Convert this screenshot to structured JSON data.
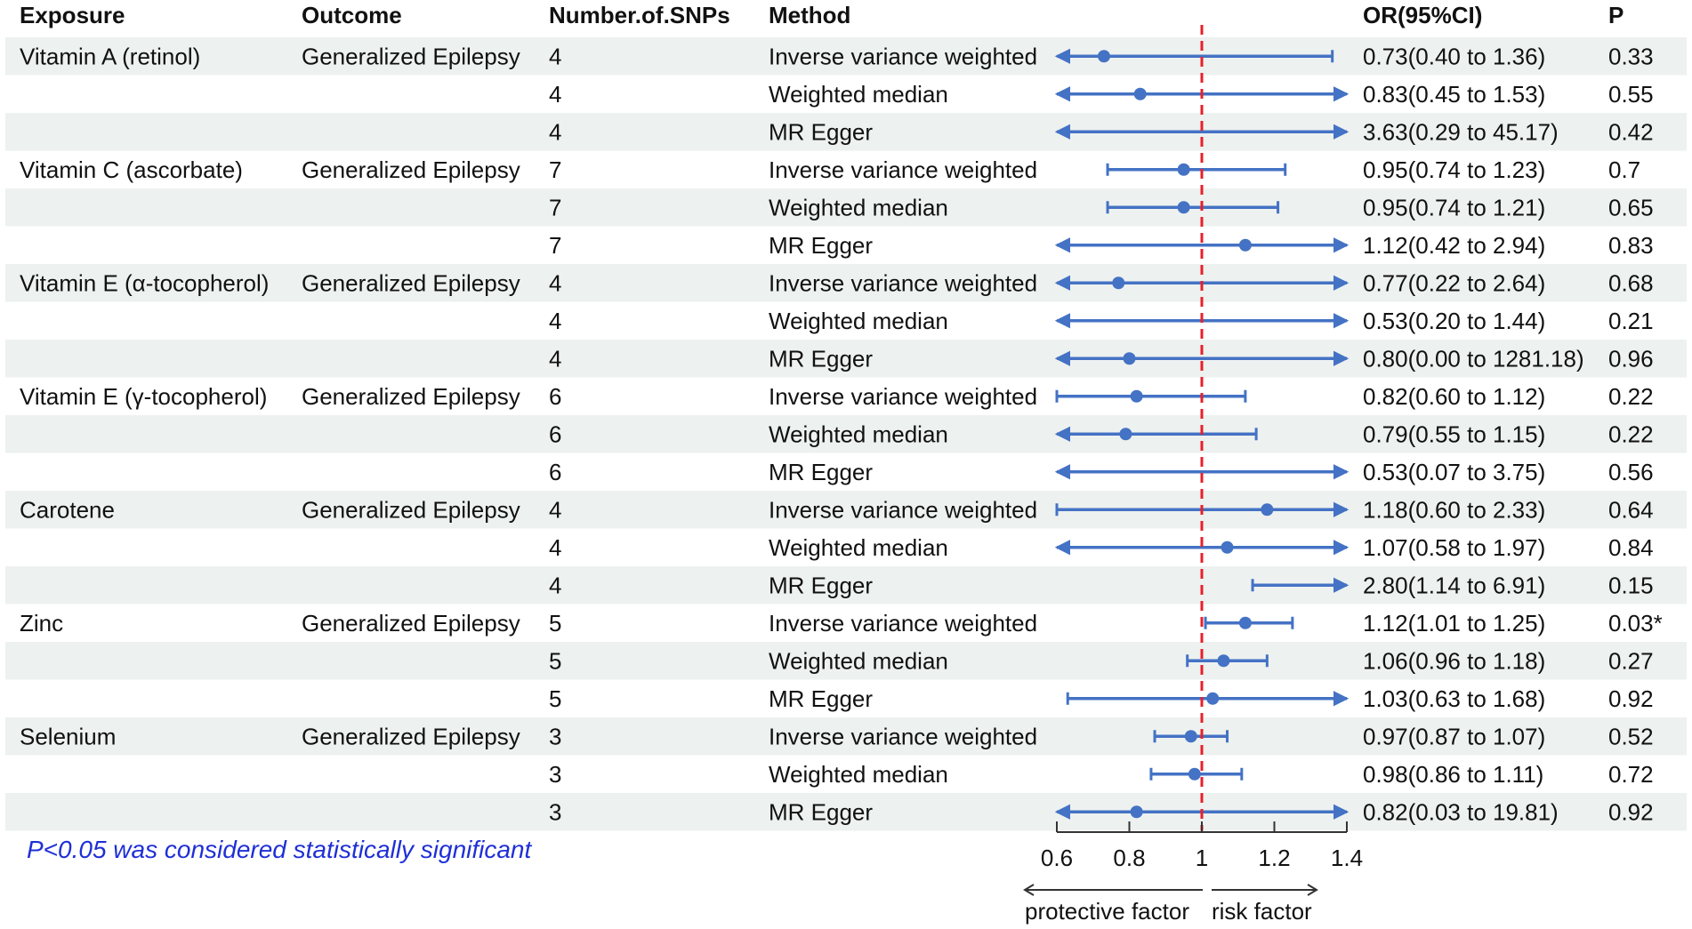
{
  "chart_data": {
    "type": "forest",
    "columns": {
      "exposure": "Exposure",
      "outcome": "Outcome",
      "snps": "Number.of.SNPs",
      "method": "Method",
      "or": "OR(95%CI)",
      "p": "P"
    },
    "rows": [
      {
        "exposure": "Vitamin A (retinol)",
        "outcome": "Generalized Epilepsy",
        "snps": "4",
        "method": "Inverse variance weighted",
        "or_text": "0.73(0.40 to 1.36)",
        "p": "0.33",
        "or": 0.73,
        "lower": 0.4,
        "upper": 1.36
      },
      {
        "exposure": "",
        "outcome": "",
        "snps": "4",
        "method": "Weighted median",
        "or_text": "0.83(0.45 to 1.53)",
        "p": "0.55",
        "or": 0.83,
        "lower": 0.45,
        "upper": 1.53
      },
      {
        "exposure": "",
        "outcome": "",
        "snps": "4",
        "method": "MR Egger",
        "or_text": "3.63(0.29 to 45.17)",
        "p": "0.42",
        "or": 3.63,
        "lower": 0.29,
        "upper": 45.17
      },
      {
        "exposure": "Vitamin C (ascorbate)",
        "outcome": "Generalized Epilepsy",
        "snps": "7",
        "method": "Inverse variance weighted",
        "or_text": "0.95(0.74 to 1.23)",
        "p": "0.7",
        "or": 0.95,
        "lower": 0.74,
        "upper": 1.23
      },
      {
        "exposure": "",
        "outcome": "",
        "snps": "7",
        "method": "Weighted median",
        "or_text": "0.95(0.74 to 1.21)",
        "p": "0.65",
        "or": 0.95,
        "lower": 0.74,
        "upper": 1.21
      },
      {
        "exposure": "",
        "outcome": "",
        "snps": "7",
        "method": "MR Egger",
        "or_text": "1.12(0.42 to 2.94)",
        "p": "0.83",
        "or": 1.12,
        "lower": 0.42,
        "upper": 2.94
      },
      {
        "exposure": "Vitamin E (α-tocopherol)",
        "outcome": "Generalized Epilepsy",
        "snps": "4",
        "method": "Inverse variance weighted",
        "or_text": "0.77(0.22 to 2.64)",
        "p": "0.68",
        "or": 0.77,
        "lower": 0.22,
        "upper": 2.64
      },
      {
        "exposure": "",
        "outcome": "",
        "snps": "4",
        "method": "Weighted median",
        "or_text": "0.53(0.20 to 1.44)",
        "p": "0.21",
        "or": 0.53,
        "lower": 0.2,
        "upper": 1.44
      },
      {
        "exposure": "",
        "outcome": "",
        "snps": "4",
        "method": "MR Egger",
        "or_text": "0.80(0.00 to 1281.18)",
        "p": "0.96",
        "or": 0.8,
        "lower": 0.0,
        "upper": 1281.18
      },
      {
        "exposure": "Vitamin E (γ-tocopherol)",
        "outcome": "Generalized Epilepsy",
        "snps": "6",
        "method": "Inverse variance weighted",
        "or_text": "0.82(0.60 to 1.12)",
        "p": "0.22",
        "or": 0.82,
        "lower": 0.6,
        "upper": 1.12
      },
      {
        "exposure": "",
        "outcome": "",
        "snps": "6",
        "method": "Weighted median",
        "or_text": "0.79(0.55 to 1.15)",
        "p": "0.22",
        "or": 0.79,
        "lower": 0.55,
        "upper": 1.15
      },
      {
        "exposure": "",
        "outcome": "",
        "snps": "6",
        "method": "MR Egger",
        "or_text": "0.53(0.07 to 3.75)",
        "p": "0.56",
        "or": 0.53,
        "lower": 0.07,
        "upper": 3.75
      },
      {
        "exposure": "Carotene",
        "outcome": "Generalized Epilepsy",
        "snps": "4",
        "method": "Inverse variance weighted",
        "or_text": "1.18(0.60 to 2.33)",
        "p": "0.64",
        "or": 1.18,
        "lower": 0.6,
        "upper": 2.33
      },
      {
        "exposure": "",
        "outcome": "",
        "snps": "4",
        "method": "Weighted median",
        "or_text": "1.07(0.58 to 1.97)",
        "p": "0.84",
        "or": 1.07,
        "lower": 0.58,
        "upper": 1.97
      },
      {
        "exposure": "",
        "outcome": "",
        "snps": "4",
        "method": "MR Egger",
        "or_text": "2.80(1.14 to 6.91)",
        "p": "0.15",
        "or": 2.8,
        "lower": 1.14,
        "upper": 6.91
      },
      {
        "exposure": "Zinc",
        "outcome": "Generalized Epilepsy",
        "snps": "5",
        "method": "Inverse variance weighted",
        "or_text": "1.12(1.01 to 1.25)",
        "p": "0.03*",
        "or": 1.12,
        "lower": 1.01,
        "upper": 1.25
      },
      {
        "exposure": "",
        "outcome": "",
        "snps": "5",
        "method": "Weighted median",
        "or_text": "1.06(0.96 to 1.18)",
        "p": "0.27",
        "or": 1.06,
        "lower": 0.96,
        "upper": 1.18
      },
      {
        "exposure": "",
        "outcome": "",
        "snps": "5",
        "method": "MR Egger",
        "or_text": "1.03(0.63 to 1.68)",
        "p": "0.92",
        "or": 1.03,
        "lower": 0.63,
        "upper": 1.68
      },
      {
        "exposure": "Selenium",
        "outcome": "Generalized Epilepsy",
        "snps": "3",
        "method": "Inverse variance weighted",
        "or_text": "0.97(0.87 to 1.07)",
        "p": "0.52",
        "or": 0.97,
        "lower": 0.87,
        "upper": 1.07
      },
      {
        "exposure": "",
        "outcome": "",
        "snps": "3",
        "method": "Weighted median",
        "or_text": "0.98(0.86 to 1.11)",
        "p": "0.72",
        "or": 0.98,
        "lower": 0.86,
        "upper": 1.11
      },
      {
        "exposure": "",
        "outcome": "",
        "snps": "3",
        "method": "MR Egger",
        "or_text": "0.82(0.03 to 19.81)",
        "p": "0.92",
        "or": 0.82,
        "lower": 0.03,
        "upper": 19.81
      }
    ],
    "xlim": [
      0.6,
      1.4
    ],
    "xticks": [
      0.6,
      0.8,
      1,
      1.2,
      1.4
    ],
    "xtick_labels": [
      "0.6",
      "0.8",
      "1",
      "1.2",
      "1.4"
    ],
    "reference_line": 1,
    "direction_labels": {
      "left": "protective factor",
      "right": "risk factor"
    },
    "footnote": "P<0.05 was considered statistically significant"
  },
  "colors": {
    "ci_line": "#4472c4",
    "point": "#4472c4",
    "reference_line": "#e8202a",
    "band": "#edf1f0",
    "footnote": "#1f2fd6",
    "text": "#111111"
  }
}
